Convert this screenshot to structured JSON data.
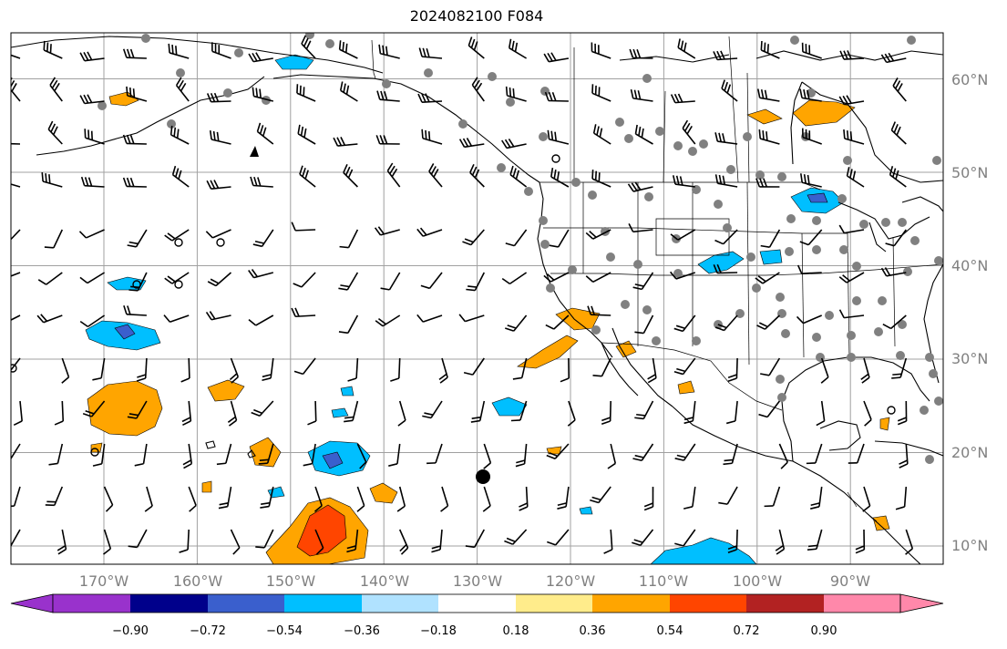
{
  "title": "2024082100 F084",
  "lat_labels": [
    "60°N",
    "50°N",
    "40°N",
    "30°N",
    "20°N",
    "10°N"
  ],
  "lon_labels": [
    "170°W",
    "160°W",
    "150°W",
    "140°W",
    "130°W",
    "120°W",
    "110°W",
    "100°W",
    "90°W"
  ],
  "colorbar": {
    "tick_labels": [
      "−0.90",
      "−0.72",
      "−0.54",
      "−0.36",
      "−0.18",
      "0.18",
      "0.36",
      "0.54",
      "0.72",
      "0.90"
    ],
    "colors": [
      "#9932cc",
      "#00008b",
      "#3a5fcd",
      "#00bfff",
      "#b0e2ff",
      "#ffffff",
      "#ffec8b",
      "#ffa500",
      "#ff4500",
      "#b22222",
      "#ff88aa"
    ]
  },
  "colors": {
    "grid": "#a0a0a0",
    "coast": "#000000",
    "station": "#808080"
  }
}
